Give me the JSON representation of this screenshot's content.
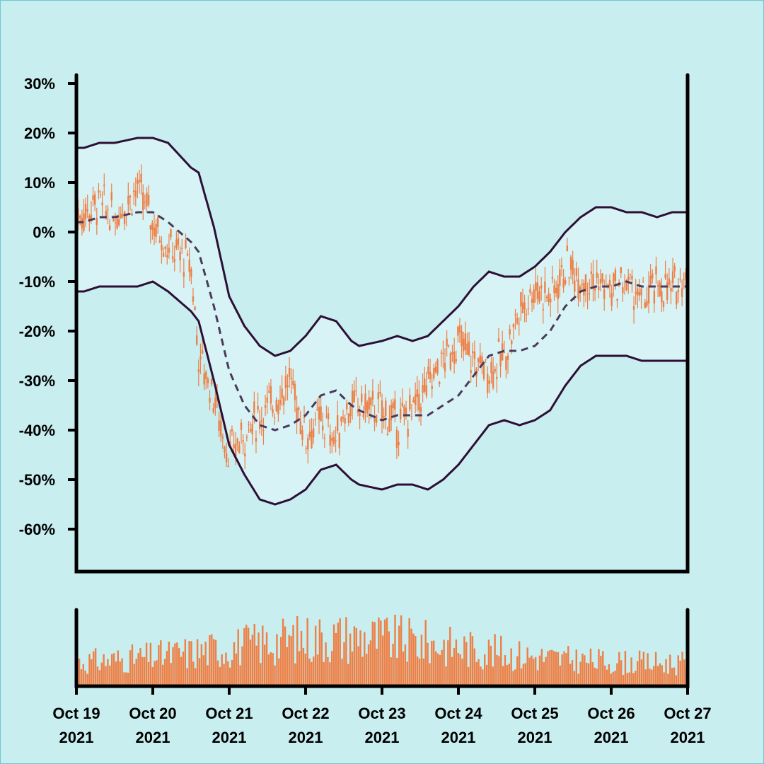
{
  "colors": {
    "background": "#c8eef0",
    "band_fill": "#d8f3f5",
    "band_line": "#2d0f36",
    "mid_line": "#4a3a5c",
    "candle": "#ee7f45",
    "volume": "#ee7f45"
  },
  "chart_data": {
    "type": "candlestick",
    "title": "",
    "xlabel": "",
    "ylabel": "",
    "y_unit": "%",
    "ylim": [
      -68,
      32
    ],
    "y_ticks": [
      30,
      20,
      10,
      0,
      -10,
      -20,
      -30,
      -40,
      -50,
      -60
    ],
    "y_tick_labels": [
      "30%",
      "20%",
      "10%",
      "0%",
      "-10%",
      "-20%",
      "-30%",
      "-40%",
      "-50%",
      "-60%"
    ],
    "x_range": [
      "2021-10-19",
      "2021-10-27"
    ],
    "x_ticks": [
      "2021-10-19",
      "2021-10-20",
      "2021-10-21",
      "2021-10-22",
      "2021-10-23",
      "2021-10-24",
      "2021-10-25",
      "2021-10-26",
      "2021-10-27"
    ],
    "x_tick_labels": [
      [
        "Oct 19",
        "2021"
      ],
      [
        "Oct 20",
        "2021"
      ],
      [
        "Oct 21",
        "2021"
      ],
      [
        "Oct 22",
        "2021"
      ],
      [
        "Oct 23",
        "2021"
      ],
      [
        "Oct 24",
        "2021"
      ],
      [
        "Oct 25",
        "2021"
      ],
      [
        "Oct 26",
        "2021"
      ],
      [
        "Oct 27",
        "2021"
      ]
    ],
    "price_close_pct": {
      "days": [
        0,
        0.1,
        0.3,
        0.5,
        0.7,
        0.8,
        1.0,
        1.2,
        1.4,
        1.5,
        1.6,
        1.8,
        1.9,
        2.0,
        2.2,
        2.4,
        2.6,
        2.8,
        3.0,
        3.2,
        3.4,
        3.5,
        3.7,
        4.0,
        4.2,
        4.4,
        4.6,
        4.8,
        5.0,
        5.2,
        5.4,
        5.6,
        5.8,
        6.0,
        6.2,
        6.4,
        6.6,
        6.8,
        7.0,
        7.2,
        7.4,
        7.6,
        7.8,
        8.0
      ],
      "values": [
        3,
        4,
        6,
        3,
        7,
        9,
        2,
        -3,
        -5,
        -7,
        -25,
        -33,
        -40,
        -45,
        -41,
        -37,
        -34,
        -30,
        -41,
        -38,
        -42,
        -36,
        -35,
        -36,
        -39,
        -36,
        -31,
        -26,
        -22,
        -26,
        -28,
        -25,
        -16,
        -11,
        -13,
        -7,
        -9,
        -10,
        -12,
        -10,
        -14,
        -11,
        -12,
        -7
      ]
    },
    "volume_scale_max": 1.0,
    "bollinger": {
      "days": [
        0,
        0.1,
        0.3,
        0.5,
        0.8,
        1.0,
        1.2,
        1.5,
        1.6,
        1.8,
        2.0,
        2.2,
        2.4,
        2.6,
        2.8,
        3.0,
        3.2,
        3.4,
        3.6,
        3.7,
        4.0,
        4.2,
        4.4,
        4.6,
        4.8,
        5.0,
        5.2,
        5.4,
        5.6,
        5.8,
        6.0,
        6.2,
        6.4,
        6.6,
        6.8,
        7.0,
        7.2,
        7.4,
        7.6,
        7.8,
        8.0
      ],
      "upper": [
        17,
        17,
        18,
        18,
        19,
        19,
        18,
        13,
        12,
        1,
        -13,
        -19,
        -23,
        -25,
        -24,
        -21,
        -17,
        -18,
        -22,
        -23,
        -22,
        -21,
        -22,
        -21,
        -18,
        -15,
        -11,
        -8,
        -9,
        -9,
        -7,
        -4,
        0,
        3,
        5,
        5,
        4,
        4,
        3,
        4,
        4
      ],
      "middle": [
        2,
        2,
        3,
        3,
        4,
        4,
        2,
        -2,
        -4,
        -15,
        -28,
        -35,
        -39,
        -40,
        -39,
        -37,
        -33,
        -32,
        -35,
        -36,
        -38,
        -37,
        -37,
        -37,
        -35,
        -33,
        -29,
        -25,
        -24,
        -24,
        -23,
        -20,
        -15,
        -12,
        -11,
        -11,
        -10,
        -11,
        -11,
        -11,
        -11
      ],
      "lower": [
        -12,
        -12,
        -11,
        -11,
        -11,
        -10,
        -12,
        -16,
        -18,
        -30,
        -43,
        -49,
        -54,
        -55,
        -54,
        -52,
        -48,
        -47,
        -50,
        -51,
        -52,
        -51,
        -51,
        -52,
        -50,
        -47,
        -43,
        -39,
        -38,
        -39,
        -38,
        -36,
        -31,
        -27,
        -25,
        -25,
        -25,
        -26,
        -26,
        -26,
        -26
      ]
    }
  }
}
